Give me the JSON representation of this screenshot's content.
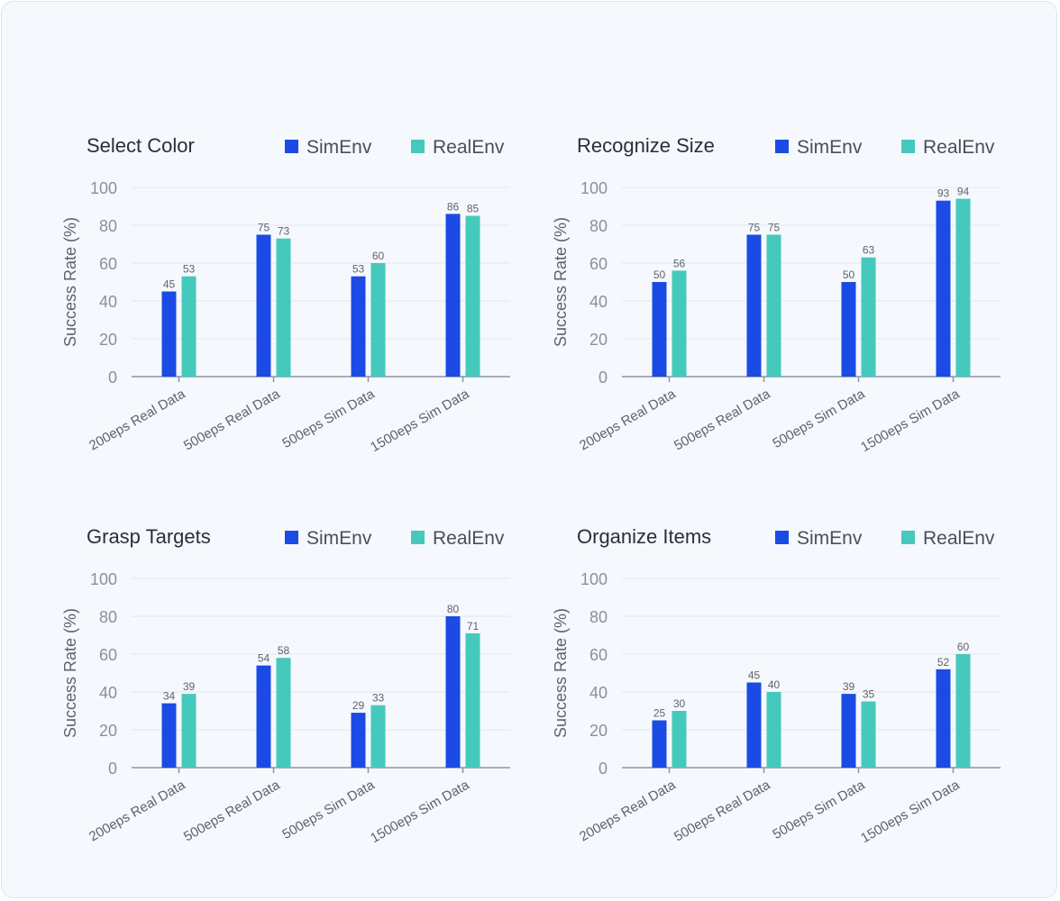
{
  "colors": {
    "sim": "#1b4be4",
    "real": "#45c9bd"
  },
  "chart_data": [
    {
      "type": "bar",
      "title": "Select Color",
      "ylabel": "Success Rate (%)",
      "ylim": [
        0,
        100
      ],
      "yticks": [
        0,
        20,
        40,
        60,
        80,
        100
      ],
      "categories": [
        "200eps Real Data",
        "500eps Real Data",
        "500eps Sim Data",
        "1500eps Sim Data"
      ],
      "series": [
        {
          "name": "SimEnv",
          "values": [
            45,
            75,
            53,
            86
          ]
        },
        {
          "name": "RealEnv",
          "values": [
            53,
            73,
            60,
            85
          ]
        }
      ]
    },
    {
      "type": "bar",
      "title": "Recognize Size",
      "ylabel": "Success Rate (%)",
      "ylim": [
        0,
        100
      ],
      "yticks": [
        0,
        20,
        40,
        60,
        80,
        100
      ],
      "categories": [
        "200eps Real Data",
        "500eps Real Data",
        "500eps Sim Data",
        "1500eps Sim Data"
      ],
      "series": [
        {
          "name": "SimEnv",
          "values": [
            50,
            75,
            50,
            93
          ]
        },
        {
          "name": "RealEnv",
          "values": [
            56,
            75,
            63,
            94
          ]
        }
      ]
    },
    {
      "type": "bar",
      "title": "Grasp Targets",
      "ylabel": "Success Rate (%)",
      "ylim": [
        0,
        100
      ],
      "yticks": [
        0,
        20,
        40,
        60,
        80,
        100
      ],
      "categories": [
        "200eps Real Data",
        "500eps Real Data",
        "500eps Sim Data",
        "1500eps Sim Data"
      ],
      "series": [
        {
          "name": "SimEnv",
          "values": [
            34,
            54,
            29,
            80
          ]
        },
        {
          "name": "RealEnv",
          "values": [
            39,
            58,
            33,
            71
          ]
        }
      ]
    },
    {
      "type": "bar",
      "title": "Organize Items",
      "ylabel": "Success Rate (%)",
      "ylim": [
        0,
        100
      ],
      "yticks": [
        0,
        20,
        40,
        60,
        80,
        100
      ],
      "categories": [
        "200eps Real Data",
        "500eps Real Data",
        "500eps Sim Data",
        "1500eps Sim Data"
      ],
      "series": [
        {
          "name": "SimEnv",
          "values": [
            25,
            45,
            39,
            52
          ]
        },
        {
          "name": "RealEnv",
          "values": [
            30,
            40,
            35,
            60
          ]
        }
      ]
    }
  ]
}
